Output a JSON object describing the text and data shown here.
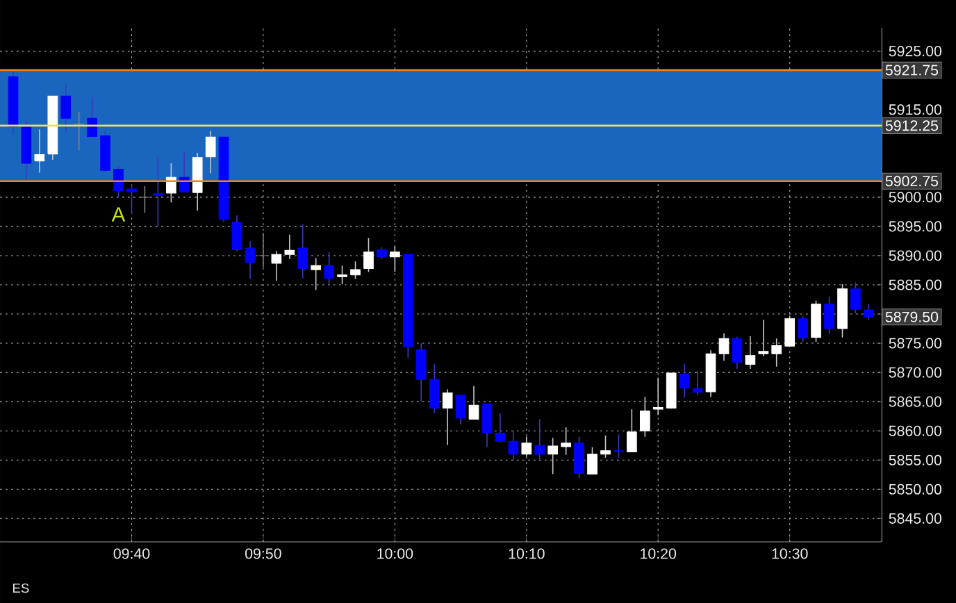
{
  "chart_data": {
    "type": "candlestick",
    "x": [
      9.5167,
      9.5333,
      9.55,
      9.5667,
      9.5833,
      9.6,
      9.6167,
      9.6333,
      9.65,
      9.6667,
      9.6833,
      9.7,
      9.7167,
      9.7333,
      9.75,
      9.7667,
      9.7833,
      9.8,
      9.8167,
      9.8333,
      9.85,
      9.8667,
      9.8833,
      9.9,
      9.9167,
      9.9333,
      9.95,
      9.9667,
      9.9833,
      10.0,
      10.0167,
      10.0333,
      10.05,
      10.0667,
      10.0833,
      10.1,
      10.1167,
      10.1333,
      10.15,
      10.1667,
      10.1833,
      10.2,
      10.2167,
      10.2333,
      10.25,
      10.2667,
      10.2833,
      10.3,
      10.3167,
      10.3333,
      10.35,
      10.3667,
      10.3833,
      10.4,
      10.4167,
      10.4333,
      10.45,
      10.4667,
      10.4833,
      10.5,
      10.5167,
      10.5333,
      10.55,
      10.5667,
      10.5833,
      10.6
    ],
    "ohlc": [
      [
        5920.6,
        5921.75,
        5910.7,
        5912.1
      ],
      [
        5912.0,
        5913.1,
        5903.0,
        5905.8
      ],
      [
        5906.2,
        5911.6,
        5904.2,
        5907.3
      ],
      [
        5907.4,
        5917.3,
        5906.4,
        5917.3
      ],
      [
        5917.3,
        5919.4,
        5911.1,
        5913.5
      ],
      [
        5912.5,
        5914.6,
        5908.0,
        5912.5
      ],
      [
        5913.5,
        5917.1,
        5910.4,
        5910.4
      ],
      [
        5910.5,
        5911.5,
        5904.2,
        5904.6
      ],
      [
        5904.8,
        5905.4,
        5900.0,
        5901.1
      ],
      [
        5901.4,
        5902.2,
        5897.1,
        5900.9
      ],
      [
        5900.0,
        5901.9,
        5897.3,
        5900.0
      ],
      [
        5900.6,
        5906.8,
        5895.1,
        5900.3
      ],
      [
        5900.7,
        5905.8,
        5899.1,
        5903.4
      ],
      [
        5903.4,
        5907.7,
        5900.9,
        5900.9
      ],
      [
        5900.8,
        5907.6,
        5897.7,
        5906.8
      ],
      [
        5906.9,
        5911.3,
        5904.1,
        5910.3
      ],
      [
        5910.3,
        5910.3,
        5895.8,
        5896.2
      ],
      [
        5895.7,
        5896.9,
        5890.8,
        5891.0
      ],
      [
        5891.3,
        5892.5,
        5886.0,
        5888.8
      ],
      [
        5890.0,
        5893.9,
        5888.0,
        5890.0
      ],
      [
        5888.7,
        5890.8,
        5885.7,
        5890.2
      ],
      [
        5890.2,
        5893.6,
        5889.4,
        5890.9
      ],
      [
        5891.3,
        5895.4,
        5886.1,
        5887.8
      ],
      [
        5887.6,
        5889.6,
        5884.1,
        5888.3
      ],
      [
        5888.3,
        5890.6,
        5885.1,
        5886.1
      ],
      [
        5886.4,
        5888.3,
        5885.1,
        5886.7
      ],
      [
        5886.7,
        5889.0,
        5886.0,
        5887.6
      ],
      [
        5887.8,
        5893.0,
        5887.2,
        5890.6
      ],
      [
        5891.0,
        5891.4,
        5889.4,
        5889.8
      ],
      [
        5889.8,
        5891.6,
        5887.2,
        5890.6
      ],
      [
        5890.2,
        5890.2,
        5872.5,
        5874.4
      ],
      [
        5873.9,
        5875.0,
        5865.0,
        5868.8
      ],
      [
        5868.8,
        5871.4,
        5863.0,
        5863.9
      ],
      [
        5863.9,
        5867.1,
        5857.6,
        5866.5
      ],
      [
        5866.1,
        5866.1,
        5861.1,
        5862.2
      ],
      [
        5862.0,
        5867.7,
        5862.0,
        5864.4
      ],
      [
        5864.6,
        5864.6,
        5857.2,
        5859.7
      ],
      [
        5859.6,
        5863.0,
        5858.0,
        5858.2
      ],
      [
        5858.2,
        5860.0,
        5855.0,
        5856.0
      ],
      [
        5856.0,
        5859.0,
        5855.6,
        5857.9
      ],
      [
        5857.5,
        5862.0,
        5855.1,
        5856.0
      ],
      [
        5856.0,
        5858.8,
        5852.6,
        5857.4
      ],
      [
        5857.3,
        5860.6,
        5855.9,
        5857.9
      ],
      [
        5857.9,
        5859.0,
        5851.9,
        5852.7
      ],
      [
        5852.6,
        5857.2,
        5852.6,
        5856.0
      ],
      [
        5856.0,
        5859.2,
        5855.4,
        5856.6
      ],
      [
        5856.6,
        5859.4,
        5855.4,
        5856.5
      ],
      [
        5856.4,
        5863.7,
        5856.4,
        5859.8
      ],
      [
        5860.0,
        5865.8,
        5859.0,
        5863.4
      ],
      [
        5863.7,
        5869.1,
        5862.7,
        5864.0
      ],
      [
        5863.9,
        5869.9,
        5863.8,
        5869.9
      ],
      [
        5869.7,
        5871.4,
        5865.7,
        5867.3
      ],
      [
        5867.2,
        5870.3,
        5866.1,
        5866.6
      ],
      [
        5866.7,
        5873.8,
        5865.8,
        5873.2
      ],
      [
        5873.2,
        5876.7,
        5872.0,
        5875.8
      ],
      [
        5875.8,
        5876.1,
        5870.6,
        5871.7
      ],
      [
        5871.4,
        5876.2,
        5870.6,
        5872.9
      ],
      [
        5873.2,
        5879.0,
        5872.8,
        5873.6
      ],
      [
        5873.2,
        5875.8,
        5871.0,
        5874.6
      ],
      [
        5874.5,
        5879.7,
        5874.5,
        5879.2
      ],
      [
        5879.2,
        5879.7,
        5875.2,
        5875.9
      ],
      [
        5876.0,
        5882.3,
        5875.2,
        5881.7
      ],
      [
        5881.7,
        5883.0,
        5876.6,
        5877.5
      ],
      [
        5877.5,
        5885.1,
        5876.0,
        5884.3
      ],
      [
        5884.3,
        5885.4,
        5880.1,
        5880.8
      ],
      [
        5880.7,
        5881.7,
        5879.0,
        5879.5
      ]
    ],
    "colors": [
      "#0000ff",
      "#0000ff",
      "#ffffff",
      "#ffffff",
      "#0000ff",
      "#808080",
      "#0000ff",
      "#0000ff",
      "#0000ff",
      "#0000ff",
      "#808080",
      "#0000ff",
      "#ffffff",
      "#0000ff",
      "#ffffff",
      "#ffffff",
      "#0000ff",
      "#0000ff",
      "#0000ff",
      "#808080",
      "#ffffff",
      "#ffffff",
      "#0000ff",
      "#ffffff",
      "#0000ff",
      "#ffffff",
      "#ffffff",
      "#ffffff",
      "#0000ff",
      "#ffffff",
      "#0000ff",
      "#0000ff",
      "#0000ff",
      "#ffffff",
      "#0000ff",
      "#ffffff",
      "#0000ff",
      "#0000ff",
      "#0000ff",
      "#ffffff",
      "#0000ff",
      "#ffffff",
      "#ffffff",
      "#0000ff",
      "#ffffff",
      "#ffffff",
      "#0000ff",
      "#ffffff",
      "#ffffff",
      "#ffffff",
      "#ffffff",
      "#0000ff",
      "#0000ff",
      "#ffffff",
      "#ffffff",
      "#0000ff",
      "#ffffff",
      "#ffffff",
      "#ffffff",
      "#ffffff",
      "#0000ff",
      "#ffffff",
      "#0000ff",
      "#ffffff",
      "#0000ff",
      "#0000ff"
    ],
    "xlim": [
      9.5,
      10.6167
    ],
    "ylim": [
      5841,
      5929
    ],
    "xticks": [
      {
        "value": 9.6667,
        "label": "09:40"
      },
      {
        "value": 9.8333,
        "label": "09:50"
      },
      {
        "value": 10.0,
        "label": "10:00"
      },
      {
        "value": 10.1667,
        "label": "10:10"
      },
      {
        "value": 10.3333,
        "label": "10:20"
      },
      {
        "value": 10.5,
        "label": "10:30"
      }
    ],
    "yticks": [
      {
        "value": 5845,
        "label": "5845.00"
      },
      {
        "value": 5850,
        "label": "5850.00"
      },
      {
        "value": 5855,
        "label": "5855.00"
      },
      {
        "value": 5860,
        "label": "5860.00"
      },
      {
        "value": 5865,
        "label": "5865.00"
      },
      {
        "value": 5870,
        "label": "5870.00"
      },
      {
        "value": 5875,
        "label": "5875.00"
      },
      {
        "value": 5880,
        "label": null
      },
      {
        "value": 5885,
        "label": "5885.00"
      },
      {
        "value": 5890,
        "label": "5890.00"
      },
      {
        "value": 5895,
        "label": "5895.00"
      },
      {
        "value": 5900,
        "label": "5900.00"
      },
      {
        "value": 5905,
        "label": null
      },
      {
        "value": 5910,
        "label": null
      },
      {
        "value": 5915,
        "label": "5915.00"
      },
      {
        "value": 5920,
        "label": null
      },
      {
        "value": 5925,
        "label": "5925.00"
      }
    ],
    "grid": true,
    "bands": [
      {
        "axis": "y",
        "from": 5902.75,
        "to": 5921.75,
        "color": "#1a66bf"
      }
    ],
    "ref_lines": [
      {
        "axis": "y",
        "value": 5921.75,
        "label": "5921.75",
        "color": "#e8841c"
      },
      {
        "axis": "y",
        "value": 5912.25,
        "label": "5912.25",
        "color": "#e6e64c"
      },
      {
        "axis": "y",
        "value": 5902.75,
        "label": "5902.75",
        "color": "#e8841c"
      }
    ],
    "annotations": [
      "ES",
      "A",
      "5879.50"
    ]
  }
}
